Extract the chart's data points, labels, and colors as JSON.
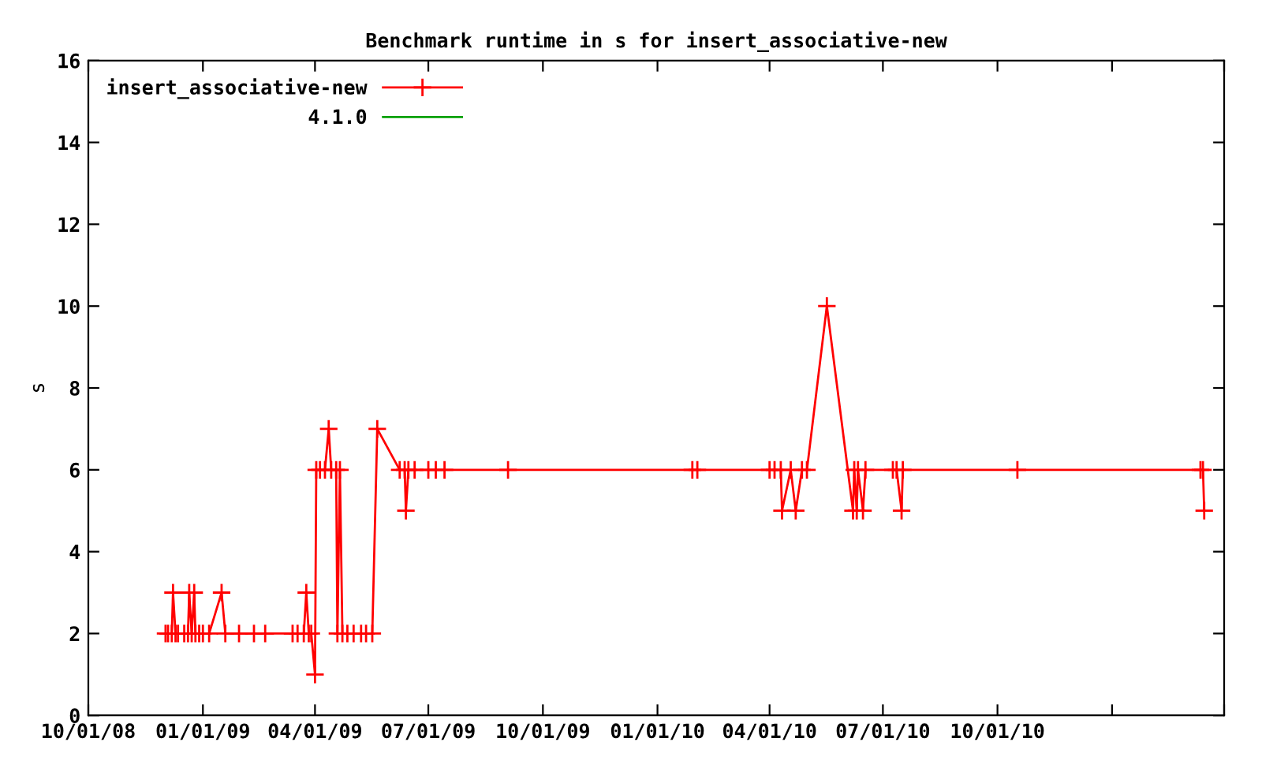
{
  "chart_data": {
    "type": "line",
    "title": "Benchmark runtime in s for insert_associative-new",
    "ylabel": "s",
    "xlim": [
      "2008-10-01",
      "2011-04-01"
    ],
    "xticks": [
      {
        "value": "2008-10-01",
        "label": "10/01/08"
      },
      {
        "value": "2009-01-01",
        "label": "01/01/09"
      },
      {
        "value": "2009-04-01",
        "label": "04/01/09"
      },
      {
        "value": "2009-07-01",
        "label": "07/01/09"
      },
      {
        "value": "2009-10-01",
        "label": "10/01/09"
      },
      {
        "value": "2010-01-01",
        "label": "01/01/10"
      },
      {
        "value": "2010-04-01",
        "label": "04/01/10"
      },
      {
        "value": "2010-07-01",
        "label": "07/01/10"
      },
      {
        "value": "2010-10-01",
        "label": "10/01/10"
      },
      {
        "value": "2011-01-01",
        "label": null
      },
      {
        "value": "2011-04-01",
        "label": null
      }
    ],
    "ylim": [
      0,
      16
    ],
    "yticks": [
      0,
      2,
      4,
      6,
      8,
      10,
      12,
      14,
      16
    ],
    "grid": false,
    "legend": "top left",
    "series": [
      {
        "name": "insert_associative-new",
        "color": "#ff0000",
        "marker": "cross",
        "x": [
          "2008-12-02",
          "2008-12-04",
          "2008-12-07",
          "2008-12-08",
          "2008-12-10",
          "2008-12-12",
          "2008-12-17",
          "2008-12-20",
          "2008-12-21",
          "2008-12-23",
          "2008-12-25",
          "2008-12-26",
          "2008-12-29",
          "2009-01-01",
          "2009-01-06",
          "2009-01-16",
          "2009-01-19",
          "2009-01-30",
          "2009-02-11",
          "2009-02-20",
          "2009-03-14",
          "2009-03-18",
          "2009-03-23",
          "2009-03-25",
          "2009-03-27",
          "2009-03-29",
          "2009-04-01",
          "2009-04-02",
          "2009-04-05",
          "2009-04-09",
          "2009-04-12",
          "2009-04-14",
          "2009-04-18",
          "2009-04-19",
          "2009-04-21",
          "2009-04-23",
          "2009-04-27",
          "2009-05-02",
          "2009-05-08",
          "2009-05-12",
          "2009-05-17",
          "2009-05-21",
          "2009-06-08",
          "2009-06-12",
          "2009-06-13",
          "2009-06-15",
          "2009-06-20",
          "2009-07-01",
          "2009-07-07",
          "2009-07-14",
          "2009-09-03",
          "2010-01-29",
          "2010-02-02",
          "2010-04-01",
          "2010-04-05",
          "2010-04-10",
          "2010-04-11",
          "2010-04-18",
          "2010-04-22",
          "2010-04-27",
          "2010-05-01",
          "2010-05-17",
          "2010-06-07",
          "2010-06-08",
          "2010-06-10",
          "2010-06-11",
          "2010-06-15",
          "2010-06-17",
          "2010-07-09",
          "2010-07-12",
          "2010-07-16",
          "2010-07-17",
          "2010-10-17",
          "2011-03-13",
          "2011-03-15",
          "2011-03-16"
        ],
        "values": [
          2,
          2,
          2,
          3,
          2,
          2,
          2,
          2,
          3,
          2,
          3,
          2,
          2,
          2,
          2,
          3,
          2,
          2,
          2,
          2,
          2,
          2,
          2,
          3,
          2,
          2,
          1,
          6,
          6,
          6,
          7,
          6,
          6,
          2,
          6,
          2,
          2,
          2,
          2,
          2,
          2,
          7,
          6,
          6,
          5,
          6,
          6,
          6,
          6,
          6,
          6,
          6,
          6,
          6,
          6,
          6,
          5,
          6,
          5,
          6,
          6,
          10,
          5,
          6,
          5,
          6,
          5,
          6,
          6,
          6,
          5,
          6,
          6,
          6,
          6,
          5
        ]
      },
      {
        "name": "4.1.0",
        "color": "#00a000"
      }
    ]
  }
}
